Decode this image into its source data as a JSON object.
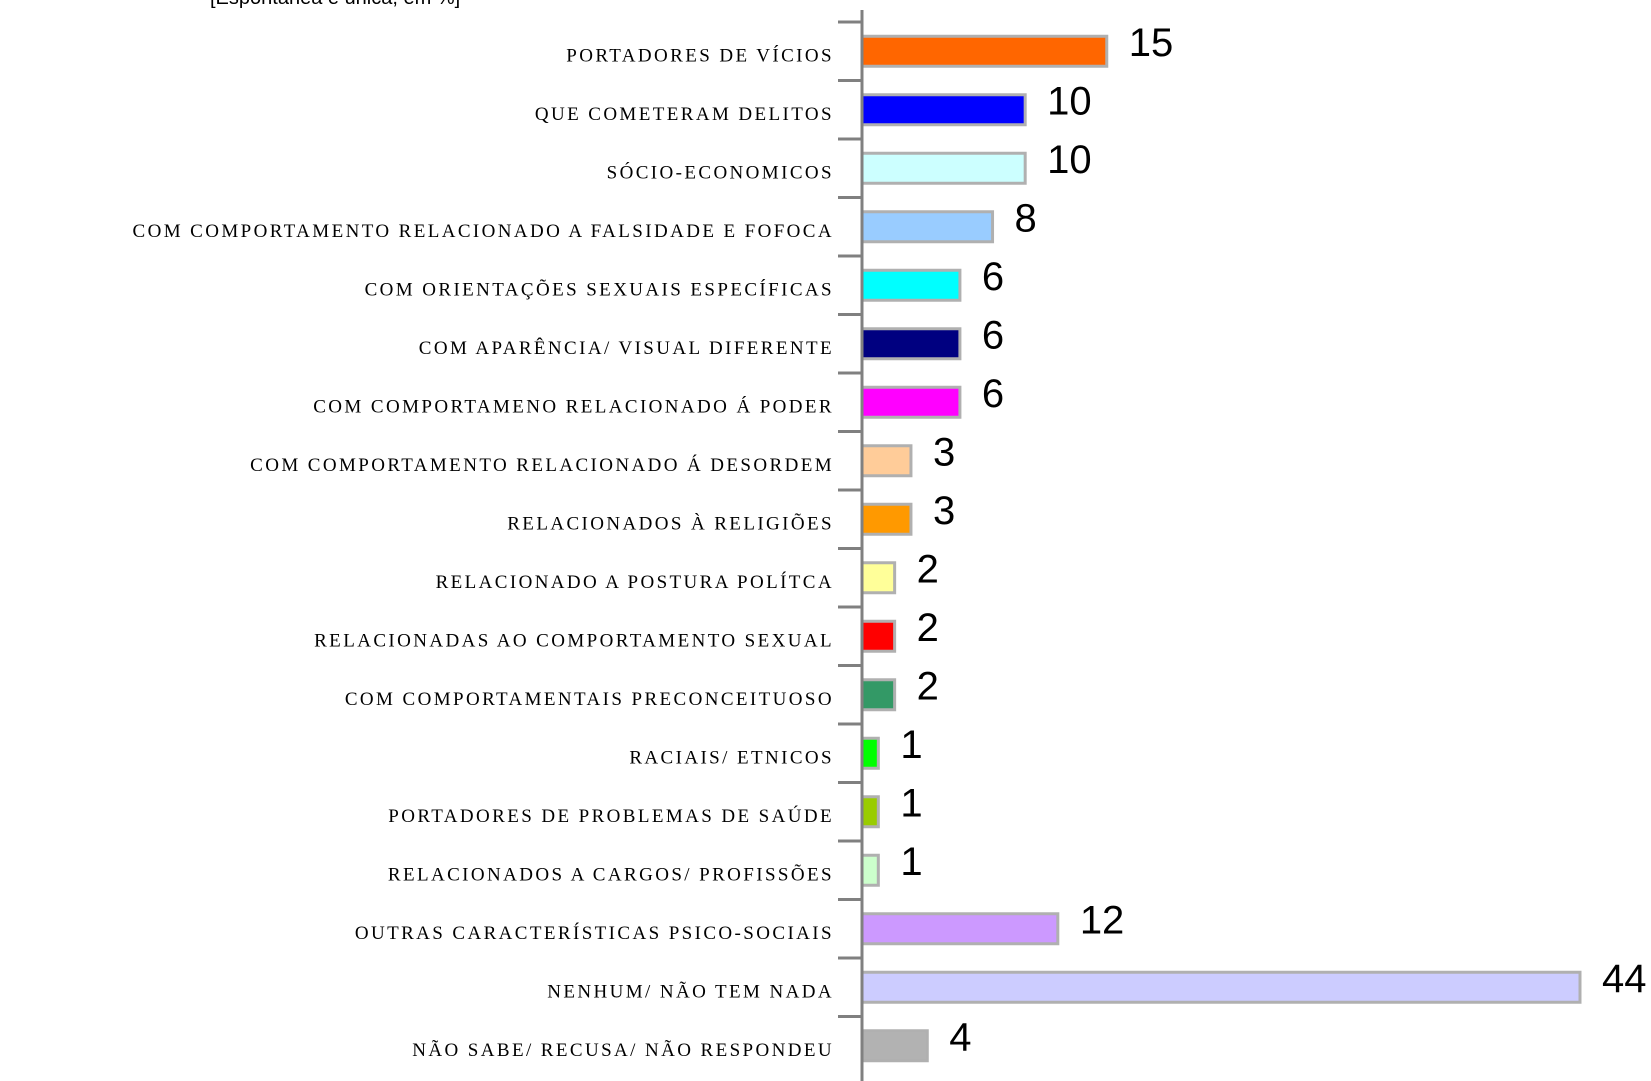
{
  "chart_data": {
    "type": "bar",
    "orientation": "horizontal",
    "subtitle": "[Espontânea e única, em %]",
    "categories": [
      "PORTADORES DE VÍCIOS",
      "QUE COMETERAM DELITOS",
      "SÓCIO-ECONOMICOS",
      "COM COMPORTAMENTO RELACIONADO A FALSIDADE E FOFOCA",
      "COM ORIENTAÇÕES SEXUAIS ESPECÍFICAS",
      "COM APARÊNCIA/ VISUAL  DIFERENTE",
      "COM COMPORTAMENO RELACIONADO Á PODER",
      "COM COMPORTAMENTO RELACIONADO Á DESORDEM",
      "RELACIONADOS À RELIGIÕES",
      "RELACIONADO A POSTURA POLÍTCA",
      "RELACIONADAS AO COMPORTAMENTO SEXUAL",
      "COM COMPORTAMENTAIS PRECONCEITUOSO",
      "RACIAIS/ ETNICOS",
      "PORTADORES DE PROBLEMAS DE SAÚDE",
      "RELACIONADOS A CARGOS/ PROFISSÕES",
      "OUTRAS CARACTERÍSTICAS PSICO-SOCIAIS",
      "NENHUM/ NÃO TEM NADA",
      "NÃO SABE/ RECUSA/ NÃO RESPONDEU"
    ],
    "values": [
      15,
      10,
      10,
      8,
      6,
      6,
      6,
      3,
      3,
      2,
      2,
      2,
      1,
      1,
      1,
      12,
      44,
      4
    ],
    "colors": [
      "#ff6600",
      "#0000ff",
      "#ccffff",
      "#99ccff",
      "#00ffff",
      "#000080",
      "#ff00ff",
      "#ffcc99",
      "#ff9900",
      "#ffff99",
      "#ff0000",
      "#339966",
      "#00ff00",
      "#99cc00",
      "#ccffcc",
      "#cc99ff",
      "#ccccff",
      "#b2b2b2"
    ]
  }
}
